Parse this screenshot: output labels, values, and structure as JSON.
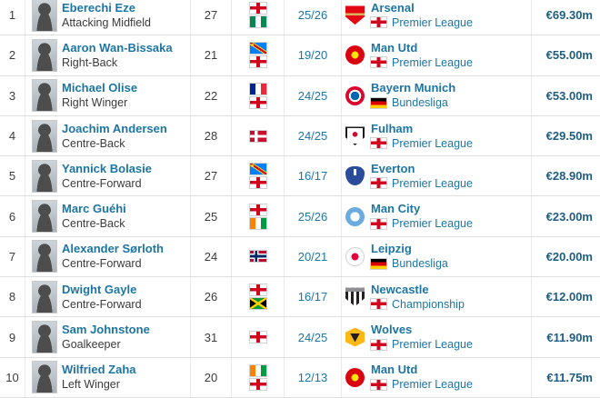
{
  "colors": {
    "link": "#1d75a3",
    "fee_text": "#1f5d80",
    "row_border": "#dfdfdf",
    "col_border": "#eaeaea"
  },
  "table": {
    "columns": [
      "rank",
      "player",
      "age",
      "nationality",
      "season",
      "club",
      "fee"
    ],
    "rows": [
      {
        "rank": "1",
        "name": "Eberechi Eze",
        "position": "Attacking Midfield",
        "age": "27",
        "nationalities": [
          {
            "id": "england",
            "label": "England"
          },
          {
            "id": "nigeria",
            "label": "Nigeria"
          }
        ],
        "season": "25/26",
        "club": "Arsenal",
        "club_id": "arsenal",
        "league": "Premier League",
        "league_country": {
          "id": "england",
          "label": "England"
        },
        "fee": "€69.30m"
      },
      {
        "rank": "2",
        "name": "Aaron Wan-Bissaka",
        "position": "Right-Back",
        "age": "21",
        "nationalities": [
          {
            "id": "drcongo",
            "label": "DR Congo"
          },
          {
            "id": "england",
            "label": "England"
          }
        ],
        "season": "19/20",
        "club": "Man Utd",
        "club_id": "manutd",
        "league": "Premier League",
        "league_country": {
          "id": "england",
          "label": "England"
        },
        "fee": "€55.00m"
      },
      {
        "rank": "3",
        "name": "Michael Olise",
        "position": "Right Winger",
        "age": "22",
        "nationalities": [
          {
            "id": "france",
            "label": "France"
          },
          {
            "id": "england",
            "label": "England"
          }
        ],
        "season": "24/25",
        "club": "Bayern Munich",
        "club_id": "bayern",
        "league": "Bundesliga",
        "league_country": {
          "id": "germany",
          "label": "Germany"
        },
        "fee": "€53.00m"
      },
      {
        "rank": "4",
        "name": "Joachim Andersen",
        "position": "Centre-Back",
        "age": "28",
        "nationalities": [
          {
            "id": "denmark",
            "label": "Denmark"
          }
        ],
        "season": "24/25",
        "club": "Fulham",
        "club_id": "fulham",
        "league": "Premier League",
        "league_country": {
          "id": "england",
          "label": "England"
        },
        "fee": "€29.50m"
      },
      {
        "rank": "5",
        "name": "Yannick Bolasie",
        "position": "Centre-Forward",
        "age": "27",
        "nationalities": [
          {
            "id": "drcongo",
            "label": "DR Congo"
          },
          {
            "id": "england",
            "label": "England"
          }
        ],
        "season": "16/17",
        "club": "Everton",
        "club_id": "everton",
        "league": "Premier League",
        "league_country": {
          "id": "england",
          "label": "England"
        },
        "fee": "€28.90m"
      },
      {
        "rank": "6",
        "name": "Marc Guéhi",
        "position": "Centre-Back",
        "age": "25",
        "nationalities": [
          {
            "id": "england",
            "label": "England"
          },
          {
            "id": "ivorycoast",
            "label": "Cote d'Ivoire"
          }
        ],
        "season": "25/26",
        "club": "Man City",
        "club_id": "mancity",
        "league": "Premier League",
        "league_country": {
          "id": "england",
          "label": "England"
        },
        "fee": "€23.00m"
      },
      {
        "rank": "7",
        "name": "Alexander Sørloth",
        "position": "Centre-Forward",
        "age": "24",
        "nationalities": [
          {
            "id": "norway",
            "label": "Norway"
          }
        ],
        "season": "20/21",
        "club": "Leipzig",
        "club_id": "leipzig",
        "league": "Bundesliga",
        "league_country": {
          "id": "germany",
          "label": "Germany"
        },
        "fee": "€20.00m"
      },
      {
        "rank": "8",
        "name": "Dwight Gayle",
        "position": "Centre-Forward",
        "age": "26",
        "nationalities": [
          {
            "id": "england",
            "label": "England"
          },
          {
            "id": "jamaica",
            "label": "Jamaica"
          }
        ],
        "season": "16/17",
        "club": "Newcastle",
        "club_id": "newcastle",
        "league": "Championship",
        "league_country": {
          "id": "england",
          "label": "England"
        },
        "fee": "€12.00m"
      },
      {
        "rank": "9",
        "name": "Sam Johnstone",
        "position": "Goalkeeper",
        "age": "31",
        "nationalities": [
          {
            "id": "england",
            "label": "England"
          }
        ],
        "season": "24/25",
        "club": "Wolves",
        "club_id": "wolves",
        "league": "Premier League",
        "league_country": {
          "id": "england",
          "label": "England"
        },
        "fee": "€11.90m"
      },
      {
        "rank": "10",
        "name": "Wilfried Zaha",
        "position": "Left Winger",
        "age": "20",
        "nationalities": [
          {
            "id": "ivorycoast",
            "label": "Cote d'Ivoire"
          },
          {
            "id": "england",
            "label": "England"
          }
        ],
        "season": "12/13",
        "club": "Man Utd",
        "club_id": "manutd",
        "league": "Premier League",
        "league_country": {
          "id": "england",
          "label": "England"
        },
        "fee": "€11.75m"
      }
    ]
  }
}
